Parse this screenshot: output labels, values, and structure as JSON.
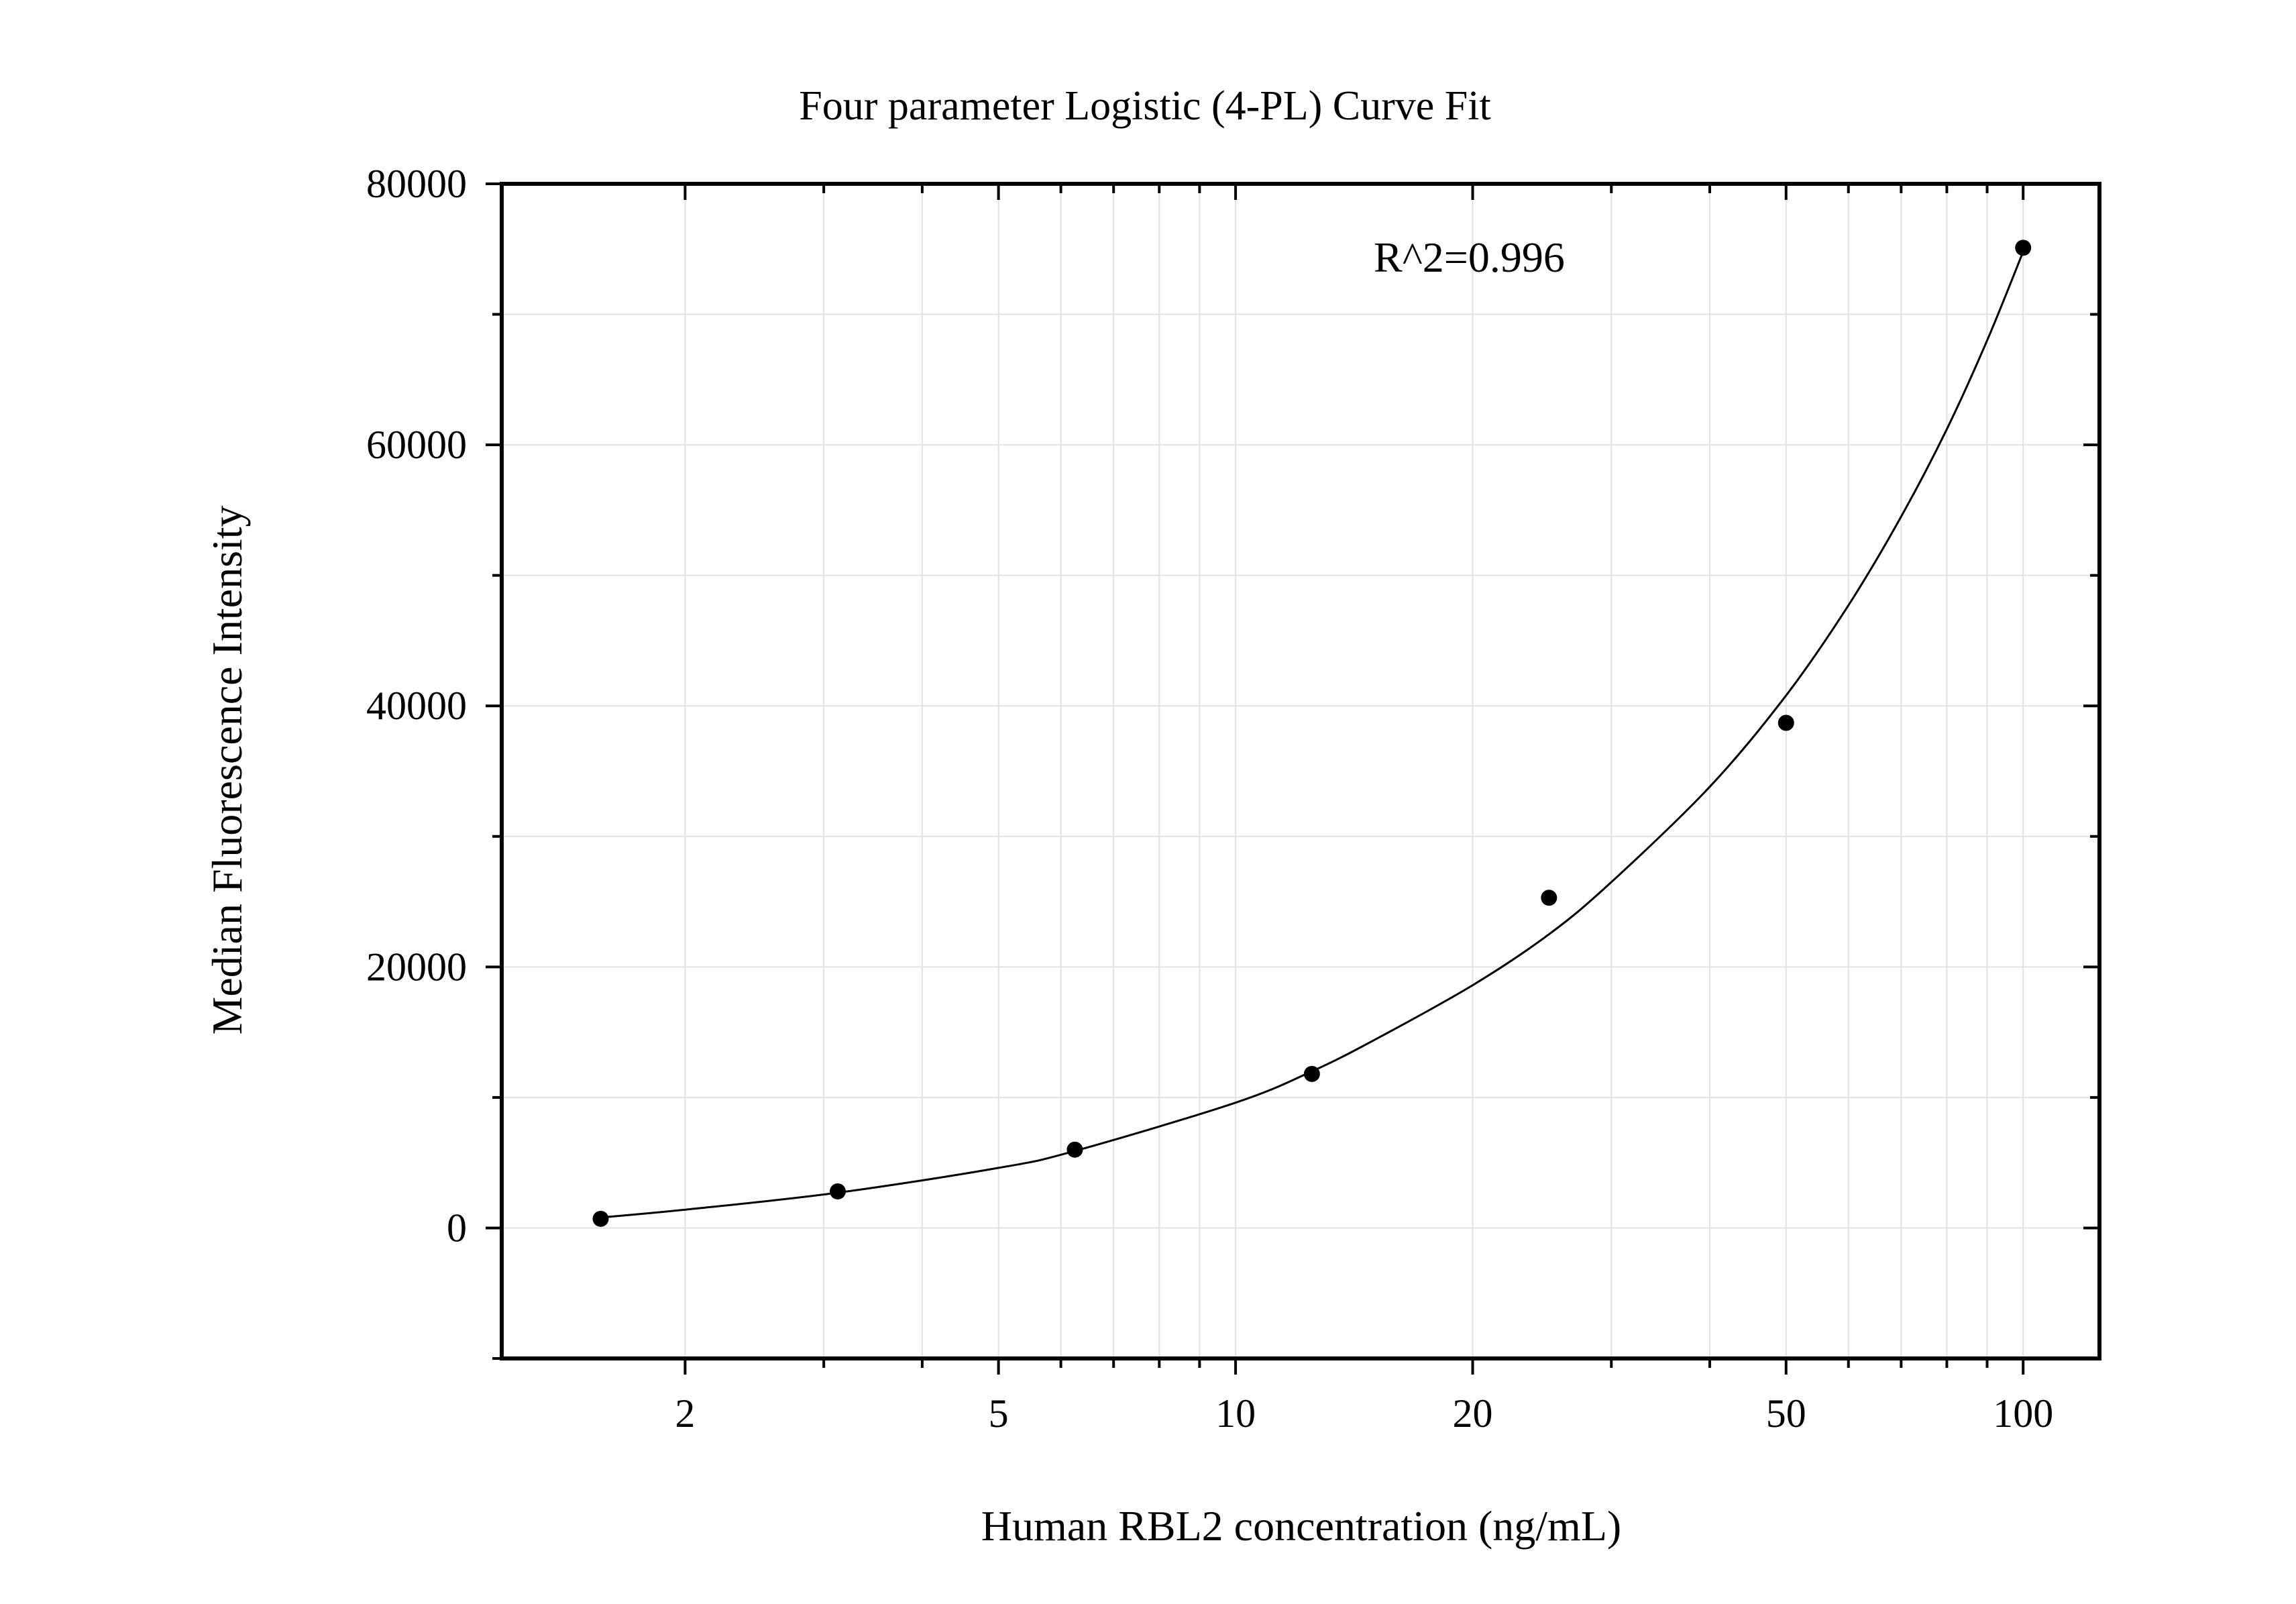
{
  "chart_data": {
    "type": "scatter",
    "title": "Four parameter Logistic (4-PL) Curve Fit",
    "xlabel": "Human RBL2 concentration (ng/mL)",
    "ylabel": "Median Fluorescence Intensity",
    "x_scale": "log",
    "xlim": [
      1.17,
      125
    ],
    "ylim": [
      -10000,
      80000
    ],
    "x_ticks": [
      2,
      5,
      10,
      20,
      50,
      100
    ],
    "x_tick_labels": [
      "2",
      "5",
      "10",
      "20",
      "50",
      "100"
    ],
    "y_ticks": [
      0,
      20000,
      40000,
      60000,
      80000
    ],
    "y_tick_labels": [
      "0",
      "20000",
      "40000",
      "60000",
      "80000"
    ],
    "grid": true,
    "annotation": "R^2=0.996",
    "points": {
      "x": [
        1.5625,
        3.125,
        6.25,
        12.5,
        25,
        50,
        100
      ],
      "y": [
        700,
        2800,
        6000,
        11800,
        25300,
        38700,
        75100
      ]
    },
    "fit_curve": {
      "x": [
        1.5625,
        2,
        3.125,
        5,
        6.25,
        10,
        12.5,
        15,
        20,
        25,
        30,
        40,
        50,
        60,
        70,
        80,
        90,
        100
      ],
      "y": [
        800,
        1400,
        2700,
        4600,
        5900,
        9600,
        12000,
        14400,
        18600,
        22500,
        26500,
        33800,
        40800,
        47700,
        54500,
        61200,
        68000,
        74800
      ]
    },
    "colors": {
      "marker": "#000000",
      "curve": "#000000",
      "grid": "#e2e2e2",
      "frame": "#000000"
    }
  }
}
